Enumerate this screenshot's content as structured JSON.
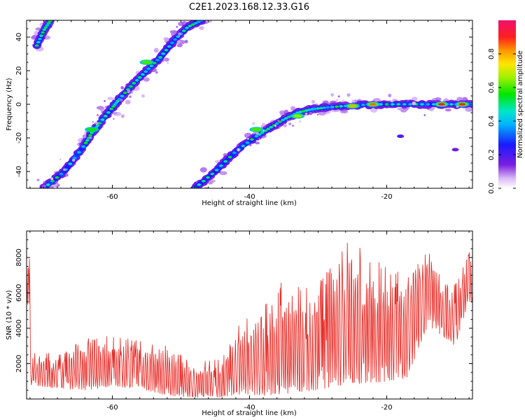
{
  "title": "C2E1.2023.168.12.33.G16",
  "chart_data": [
    {
      "type": "heatmap",
      "xlabel": "Height of straight line (km)",
      "ylabel": "Frequency (Hz)",
      "xlim": [
        -72.5,
        -7.5
      ],
      "ylim": [
        -50,
        50
      ],
      "xticks": [
        -60,
        -40,
        -20
      ],
      "yticks": [
        -40,
        -20,
        0,
        20,
        40
      ],
      "colorbar": {
        "label": "Normalized spectral amplitude",
        "range": [
          0,
          1
        ],
        "ticks": [
          0,
          0.2,
          0.4,
          0.6,
          0.8
        ],
        "colormap": "white-purple-blue-cyan-green-yellow-orange-red-magenta"
      },
      "ridges": [
        {
          "name": "steep ridge",
          "points": [
            [
              -71,
              35
            ],
            [
              -70,
              44
            ],
            [
              -69,
              50
            ]
          ]
        },
        {
          "name": "steep ridge",
          "points": [
            [
              -70,
              -50
            ],
            [
              -67,
              -40
            ],
            [
              -64,
              -24
            ],
            [
              -63,
              -17
            ],
            [
              -62,
              -12
            ],
            [
              -60,
              -2
            ],
            [
              -59,
              3
            ],
            [
              -57,
              12
            ],
            [
              -55,
              20
            ],
            [
              -53,
              28
            ],
            [
              -51,
              38
            ],
            [
              -49,
              46
            ],
            [
              -47,
              50
            ]
          ]
        },
        {
          "name": "flattening ridge",
          "points": [
            [
              -48,
              -50
            ],
            [
              -45,
              -40
            ],
            [
              -42,
              -28
            ],
            [
              -39,
              -19
            ],
            [
              -37,
              -14
            ],
            [
              -35,
              -9
            ],
            [
              -33,
              -5
            ],
            [
              -31,
              -3
            ],
            [
              -29,
              -2
            ],
            [
              -26,
              -1
            ],
            [
              -22,
              0
            ],
            [
              -18,
              0
            ],
            [
              -14,
              0
            ],
            [
              -10,
              0
            ],
            [
              -7.5,
              0
            ]
          ]
        }
      ],
      "hotspots": [
        {
          "x": -12,
          "y": 0,
          "amplitude": 0.95
        },
        {
          "x": -9,
          "y": 0,
          "amplitude": 0.9
        },
        {
          "x": -22,
          "y": 0,
          "amplitude": 0.85
        },
        {
          "x": -25,
          "y": -1,
          "amplitude": 0.8
        },
        {
          "x": -33,
          "y": -7,
          "amplitude": 0.65
        },
        {
          "x": -39,
          "y": -15,
          "amplitude": 0.6
        },
        {
          "x": -55,
          "y": 25,
          "amplitude": 0.6
        },
        {
          "x": -63,
          "y": -15,
          "amplitude": 0.55
        },
        {
          "x": -18,
          "y": -19,
          "amplitude": 0.2
        },
        {
          "x": -10,
          "y": -27,
          "amplitude": 0.15
        }
      ]
    },
    {
      "type": "line",
      "xlabel": "Height of straight line (km)",
      "ylabel": "SNR (10 * v/v)",
      "xlim": [
        -72.5,
        -7.5
      ],
      "ylim": [
        0,
        9500
      ],
      "xticks": [
        -60,
        -40,
        -20
      ],
      "yticks": [
        2000,
        4000,
        6000,
        8000
      ],
      "color": "#e8302b",
      "envelope": [
        {
          "x": -72,
          "low": 800,
          "high": 2800
        },
        {
          "x": -68,
          "low": 600,
          "high": 2500
        },
        {
          "x": -64,
          "low": 500,
          "high": 3400
        },
        {
          "x": -60,
          "low": 700,
          "high": 3600
        },
        {
          "x": -56,
          "low": 600,
          "high": 3300
        },
        {
          "x": -52,
          "low": 200,
          "high": 3000
        },
        {
          "x": -48,
          "low": 100,
          "high": 2000
        },
        {
          "x": -44,
          "low": 100,
          "high": 2400
        },
        {
          "x": -41,
          "low": 300,
          "high": 4600
        },
        {
          "x": -38,
          "low": 200,
          "high": 5200
        },
        {
          "x": -35,
          "low": 300,
          "high": 6800
        },
        {
          "x": -32,
          "low": 400,
          "high": 6200
        },
        {
          "x": -29,
          "low": 600,
          "high": 7000
        },
        {
          "x": -26,
          "low": 800,
          "high": 9500
        },
        {
          "x": -23,
          "low": 900,
          "high": 8200
        },
        {
          "x": -20,
          "low": 1000,
          "high": 7600
        },
        {
          "x": -17,
          "low": 1200,
          "high": 7000
        },
        {
          "x": -14,
          "low": 4200,
          "high": 9200
        },
        {
          "x": -12,
          "low": 3600,
          "high": 6600
        },
        {
          "x": -10,
          "low": 3000,
          "high": 6500
        },
        {
          "x": -8,
          "low": 5600,
          "high": 8400
        },
        {
          "x": -7.5,
          "low": 5200,
          "high": 8000
        }
      ]
    }
  ]
}
